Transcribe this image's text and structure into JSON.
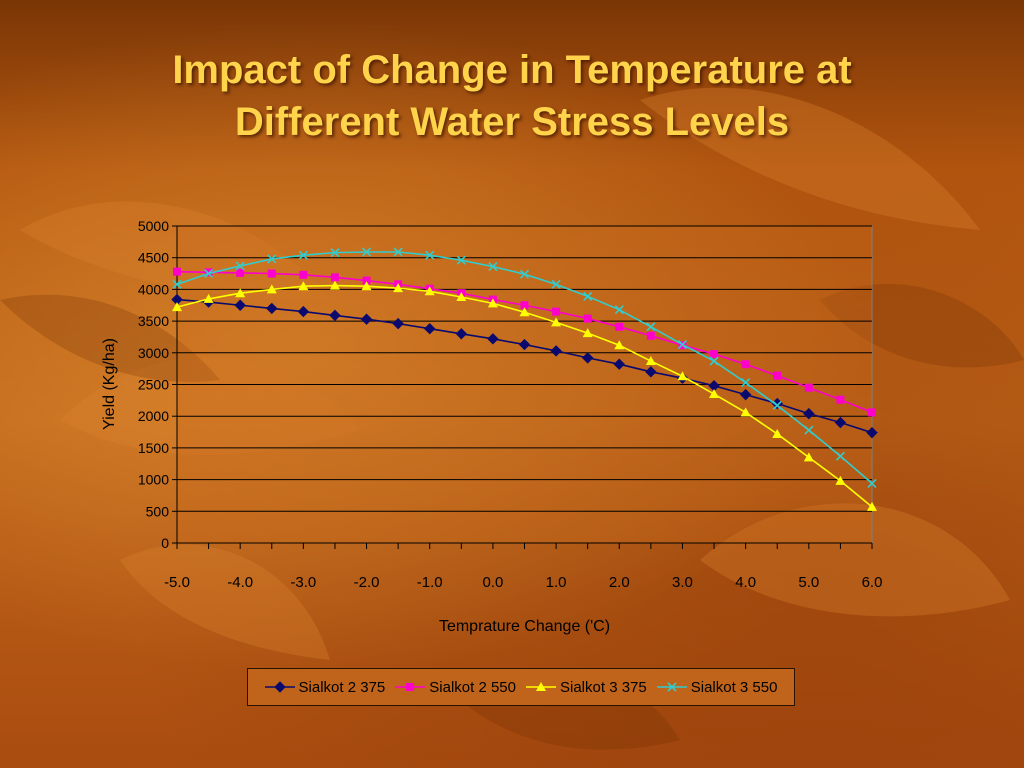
{
  "slide": {
    "title_line1": "Impact of Change in Temperature at",
    "title_line2": "Different Water Stress Levels"
  },
  "chart_data": {
    "type": "line",
    "title": "",
    "xlabel": "Temprature Change ('C)",
    "ylabel": "Yield (Kg/ha)",
    "x": [
      -5.0,
      -4.5,
      -4.0,
      -3.5,
      -3.0,
      -2.5,
      -2.0,
      -1.5,
      -1.0,
      -0.5,
      0.0,
      0.5,
      1.0,
      1.5,
      2.0,
      2.5,
      3.0,
      3.5,
      4.0,
      4.5,
      5.0,
      5.5,
      6.0
    ],
    "x_tick_labels": [
      "-5.0",
      "-4.0",
      "-3.0",
      "-2.0",
      "-1.0",
      "0.0",
      "1.0",
      "2.0",
      "3.0",
      "4.0",
      "5.0",
      "6.0"
    ],
    "y_tick_labels": [
      "0",
      "500",
      "1000",
      "1500",
      "2000",
      "2500",
      "3000",
      "3500",
      "4000",
      "4500",
      "5000"
    ],
    "ylim": [
      0,
      5000
    ],
    "grid": "horizontal",
    "legend_position": "bottom",
    "series": [
      {
        "name": "Sialkot 2 375",
        "color": "#0a0a6e",
        "marker": "diamond",
        "values": [
          3840,
          3800,
          3750,
          3700,
          3650,
          3590,
          3530,
          3460,
          3380,
          3300,
          3220,
          3130,
          3030,
          2920,
          2820,
          2700,
          2600,
          2480,
          2340,
          2200,
          2040,
          1900,
          1740
        ]
      },
      {
        "name": "Sialkot 2 550",
        "color": "#ff00cc",
        "marker": "square",
        "values": [
          4280,
          4270,
          4260,
          4250,
          4230,
          4190,
          4140,
          4080,
          4010,
          3940,
          3840,
          3750,
          3650,
          3540,
          3410,
          3270,
          3120,
          2980,
          2820,
          2640,
          2450,
          2260,
          2060
        ]
      },
      {
        "name": "Sialkot 3 375",
        "color": "#ffff00",
        "marker": "triangle",
        "values": [
          3720,
          3850,
          3940,
          4000,
          4050,
          4060,
          4050,
          4020,
          3970,
          3880,
          3780,
          3640,
          3480,
          3310,
          3120,
          2870,
          2630,
          2350,
          2060,
          1720,
          1350,
          980,
          570
        ]
      },
      {
        "name": "Sialkot 3 550",
        "color": "#33cccc",
        "marker": "x",
        "values": [
          4080,
          4250,
          4370,
          4480,
          4540,
          4580,
          4590,
          4590,
          4540,
          4460,
          4360,
          4240,
          4080,
          3890,
          3680,
          3410,
          3130,
          2870,
          2530,
          2170,
          1780,
          1370,
          940
        ]
      }
    ]
  }
}
